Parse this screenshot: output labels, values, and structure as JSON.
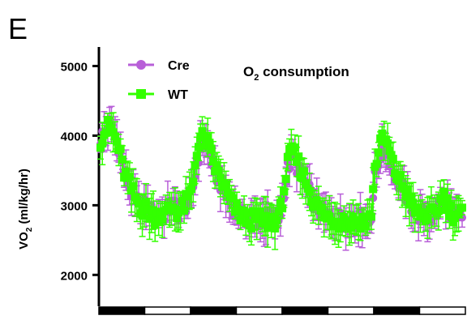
{
  "panel_label": "E",
  "chart_data": {
    "type": "scatter",
    "title_main": "O",
    "title_sub": "2",
    "title_rest": " consumption",
    "ylabel_main": "VO",
    "ylabel_sub": "2",
    "ylabel_rest": " (ml/kg/hr)",
    "ylim": [
      1550,
      5250
    ],
    "yticks": [
      2000,
      3000,
      4000,
      5000
    ],
    "ytick_labels": [
      "2000",
      "3000",
      "4000",
      "5000"
    ],
    "n_points": 200,
    "legend_position": "top-left",
    "light_dark_bars": [
      "dark",
      "light",
      "dark",
      "light",
      "dark",
      "light",
      "dark",
      "light"
    ],
    "series": [
      {
        "name": "Cre",
        "color": "#b85fd8",
        "marker": "circle",
        "values": [
          3960,
          4060,
          4150,
          4020,
          3860,
          3520,
          3330,
          3150,
          3040,
          2960,
          2980,
          2900,
          2880,
          2930,
          2870,
          2960,
          3000,
          2900,
          2950,
          3040,
          3150,
          3620,
          3850,
          3900,
          3680,
          3480,
          3350,
          3200,
          3080,
          2970,
          2890,
          2840,
          2820,
          2800,
          2810,
          2790,
          2800,
          2820,
          2780,
          2790,
          3180,
          3560,
          3700,
          3550,
          3400,
          3290,
          3120,
          3000,
          2920,
          2860,
          2830,
          2800,
          2800,
          2780,
          2790,
          2770,
          2780,
          2800,
          2760,
          2800,
          3410,
          3720,
          3850,
          3700,
          3500,
          3330,
          3240,
          3120,
          2990,
          2890,
          2860,
          2850,
          2820,
          2840,
          3000,
          3120,
          2960,
          2870,
          2860,
          2850
        ]
      },
      {
        "name": "WT",
        "color": "#33ff00",
        "marker": "square",
        "values": [
          3950,
          4070,
          4140,
          4000,
          3820,
          3500,
          3350,
          3180,
          3060,
          2960,
          2940,
          2880,
          2840,
          2900,
          2850,
          2940,
          2990,
          2890,
          2960,
          3080,
          3220,
          3800,
          3960,
          3950,
          3760,
          3550,
          3420,
          3260,
          3120,
          2990,
          2900,
          2840,
          2800,
          2790,
          2800,
          2790,
          2770,
          2790,
          2790,
          2800,
          3200,
          3640,
          3770,
          3650,
          3460,
          3330,
          3150,
          3020,
          2920,
          2860,
          2820,
          2790,
          2780,
          2790,
          2760,
          2760,
          2770,
          2790,
          2770,
          2810,
          3560,
          3880,
          3950,
          3800,
          3540,
          3390,
          3280,
          3190,
          3000,
          2880,
          2880,
          2870,
          2840,
          2860,
          3020,
          3150,
          2980,
          2880,
          2880,
          2880
        ]
      }
    ]
  }
}
